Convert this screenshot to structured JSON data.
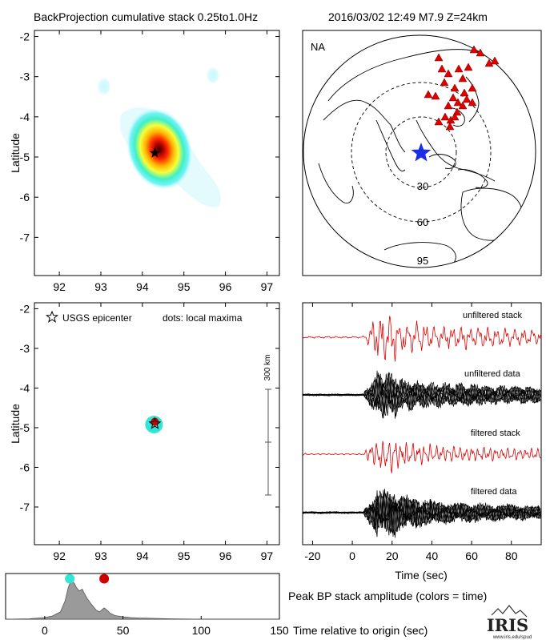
{
  "header": {
    "title": "BackProjection cumulative stack 0.25to1.0Hz",
    "event": "2016/03/02 12:49   M7.9  Z=24km"
  },
  "chart_data": [
    {
      "type": "heatmap",
      "name": "cumulative-stack",
      "xlabel": "",
      "ylabel": "Latitude",
      "xlim": [
        91.4,
        97.3
      ],
      "ylim": [
        -7.95,
        -1.85
      ],
      "xticks": [
        92,
        93,
        94,
        95,
        96,
        97
      ],
      "yticks": [
        -2,
        -3,
        -4,
        -5,
        -6,
        -7
      ],
      "peak": {
        "lon": 94.3,
        "lat": -4.9
      },
      "secondary_blobs": [
        {
          "lon": 92.9,
          "lat": -3.2
        },
        {
          "lon": 95.6,
          "lat": -2.95
        }
      ],
      "epicenter": {
        "lon": 94.3,
        "lat": -4.9
      }
    },
    {
      "type": "map",
      "name": "station-map",
      "label": "NA",
      "rings": [
        "30",
        "60",
        "95"
      ],
      "epicenter_color": "#1a2ee6",
      "station_color": "#e00000"
    },
    {
      "type": "scatter",
      "name": "local-maxima",
      "xlabel": "",
      "ylabel": "Latitude",
      "xlim": [
        91.4,
        97.3
      ],
      "ylim": [
        -7.95,
        -1.85
      ],
      "xticks": [
        92,
        93,
        94,
        95,
        96,
        97
      ],
      "yticks": [
        -2,
        -3,
        -4,
        -5,
        -6,
        -7
      ],
      "legend": {
        "epicenter": "USGS epicenter",
        "dots": "dots: local maxima"
      },
      "scalebar_label": "300 km",
      "points": [
        {
          "lon": 94.28,
          "lat": -4.92,
          "color": "#33e5d6"
        },
        {
          "lon": 94.3,
          "lat": -4.85,
          "color": "#cc0000"
        }
      ],
      "epicenter": {
        "lon": 94.3,
        "lat": -4.9
      }
    },
    {
      "type": "line",
      "name": "seismograms",
      "xlabel": "Time (sec)",
      "xlim": [
        -25,
        95
      ],
      "xticks": [
        -20,
        0,
        20,
        40,
        60,
        80
      ],
      "traces": [
        {
          "name": "unfiltered stack",
          "color": "#dd0000"
        },
        {
          "name": "unfiltered data",
          "color": "#000000"
        },
        {
          "name": "filtered stack",
          "color": "#dd0000"
        },
        {
          "name": "filtered data",
          "color": "#000000"
        }
      ]
    },
    {
      "type": "area",
      "name": "peak-bp-amplitude",
      "xlabel": "Time relative to origin (sec)",
      "title": "Peak BP stack amplitude (colors = time)",
      "xlim": [
        -25,
        150
      ],
      "xticks": [
        0,
        50,
        100,
        150
      ],
      "x": [
        -25,
        -10,
        0,
        5,
        10,
        13,
        15,
        17,
        19,
        20,
        22,
        24,
        25,
        27,
        30,
        33,
        35,
        38,
        40,
        42,
        45,
        50,
        55,
        60,
        70,
        80,
        100,
        120,
        150
      ],
      "values": [
        0.0,
        0.01,
        0.04,
        0.08,
        0.18,
        0.45,
        0.78,
        0.97,
        0.88,
        0.8,
        0.7,
        0.74,
        0.66,
        0.52,
        0.36,
        0.22,
        0.18,
        0.28,
        0.22,
        0.14,
        0.09,
        0.06,
        0.04,
        0.03,
        0.02,
        0.01,
        0.0,
        0.0,
        0.0
      ],
      "ylim": [
        0,
        1.05
      ],
      "markers": [
        {
          "x": 16,
          "value": 1.0,
          "color": "#33e5d6"
        },
        {
          "x": 38,
          "value": 1.0,
          "color": "#cc0000"
        }
      ]
    }
  ],
  "branding": {
    "logo_text": "IRIS",
    "url": "www.iris.edu/spud"
  }
}
